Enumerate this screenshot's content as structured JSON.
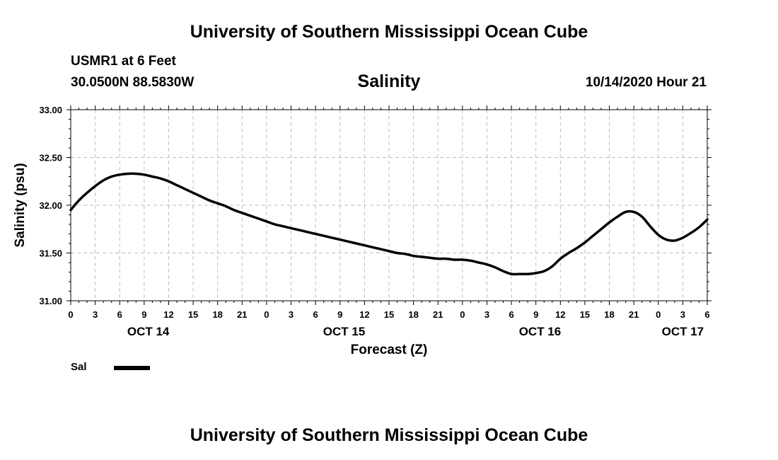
{
  "header": {
    "title": "University of Southern Mississippi Ocean Cube",
    "station": "USMR1 at 6 Feet",
    "coords": "30.0500N 88.5830W",
    "parameter": "Salinity",
    "datetime": "10/14/2020 Hour 21"
  },
  "footer": {
    "title": "University of Southern Mississippi Ocean Cube"
  },
  "chart_data": {
    "type": "line",
    "title": "Salinity",
    "xlabel": "Forecast (Z)",
    "ylabel": "Salinity (psu)",
    "ylim": [
      31.0,
      33.0
    ],
    "xlim": [
      0,
      78
    ],
    "y_ticks": [
      "31.00",
      "31.50",
      "32.00",
      "32.50",
      "33.00"
    ],
    "y_tick_values": [
      31.0,
      31.5,
      32.0,
      32.5,
      33.0
    ],
    "x_ticks": [
      "0",
      "3",
      "6",
      "9",
      "12",
      "15",
      "18",
      "21",
      "0",
      "3",
      "6",
      "9",
      "12",
      "15",
      "18",
      "21",
      "0",
      "3",
      "6",
      "9",
      "12",
      "15",
      "18",
      "21",
      "0",
      "3",
      "6"
    ],
    "day_labels": [
      {
        "label": "OCT 14",
        "hour": 9.5
      },
      {
        "label": "OCT 15",
        "hour": 33.5
      },
      {
        "label": "OCT 16",
        "hour": 57.5
      },
      {
        "label": "OCT 17",
        "hour": 75
      }
    ],
    "grid": true,
    "series": [
      {
        "name": "Sal",
        "color": "#000000",
        "x": [
          0,
          1,
          2,
          3,
          4,
          5,
          6,
          7,
          8,
          9,
          10,
          11,
          12,
          13,
          14,
          15,
          16,
          17,
          18,
          19,
          20,
          21,
          22,
          23,
          24,
          25,
          26,
          27,
          28,
          29,
          30,
          31,
          32,
          33,
          34,
          35,
          36,
          37,
          38,
          39,
          40,
          41,
          42,
          43,
          44,
          45,
          46,
          47,
          48,
          49,
          50,
          51,
          52,
          53,
          54,
          55,
          56,
          57,
          58,
          59,
          60,
          61,
          62,
          63,
          64,
          65,
          66,
          67,
          68,
          69,
          70,
          71,
          72,
          73,
          74,
          75,
          76,
          77,
          78
        ],
        "values": [
          31.95,
          32.05,
          32.13,
          32.2,
          32.26,
          32.3,
          32.32,
          32.33,
          32.33,
          32.32,
          32.3,
          32.28,
          32.25,
          32.21,
          32.17,
          32.13,
          32.09,
          32.05,
          32.02,
          31.99,
          31.95,
          31.92,
          31.89,
          31.86,
          31.83,
          31.8,
          31.78,
          31.76,
          31.74,
          31.72,
          31.7,
          31.68,
          31.66,
          31.64,
          31.62,
          31.6,
          31.58,
          31.56,
          31.54,
          31.52,
          31.5,
          31.49,
          31.47,
          31.46,
          31.45,
          31.44,
          31.44,
          31.43,
          31.43,
          31.42,
          31.4,
          31.38,
          31.35,
          31.31,
          31.28,
          31.28,
          31.28,
          31.29,
          31.31,
          31.36,
          31.44,
          31.5,
          31.55,
          31.61,
          31.68,
          31.75,
          31.82,
          31.88,
          31.93,
          31.93,
          31.88,
          31.78,
          31.69,
          31.64,
          31.63,
          31.66,
          31.71,
          31.77,
          31.85
        ]
      }
    ],
    "legend": [
      {
        "label": "Sal"
      }
    ],
    "legend_position": "bottom-left"
  }
}
